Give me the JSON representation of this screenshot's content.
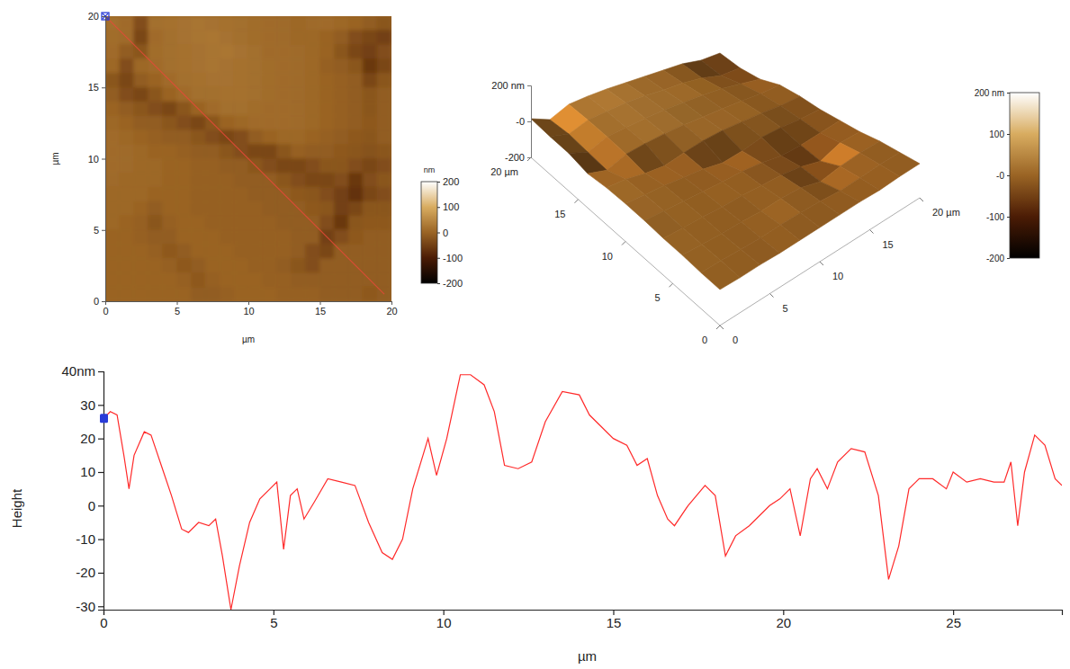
{
  "chart_data": [
    {
      "type": "heatmap",
      "x": [
        0.5,
        1.5,
        2.5,
        3.5,
        4.5,
        5.5,
        6.5,
        7.5,
        8.5,
        9.5,
        10.5,
        11.5,
        12.5,
        13.5,
        14.5,
        15.5,
        16.5,
        17.5,
        18.5,
        19.5
      ],
      "y": [
        19.5,
        18.5,
        17.5,
        16.5,
        15.5,
        14.5,
        13.5,
        12.5,
        11.5,
        10.5,
        9.5,
        8.5,
        7.5,
        6.5,
        5.5,
        4.5,
        3.5,
        2.5,
        1.5,
        0.5
      ],
      "z": [
        [
          15,
          10,
          -30,
          15,
          18,
          20,
          22,
          20,
          18,
          15,
          12,
          10,
          8,
          5,
          8,
          10,
          5,
          0,
          -10,
          -20
        ],
        [
          12,
          8,
          -40,
          10,
          15,
          20,
          22,
          25,
          20,
          15,
          12,
          10,
          8,
          5,
          5,
          0,
          -10,
          -30,
          -40,
          -50
        ],
        [
          10,
          -10,
          -20,
          12,
          15,
          18,
          20,
          22,
          25,
          20,
          15,
          10,
          10,
          8,
          5,
          0,
          -20,
          -40,
          -50,
          -30
        ],
        [
          5,
          -30,
          5,
          10,
          15,
          18,
          20,
          22,
          20,
          18,
          15,
          12,
          10,
          8,
          5,
          -5,
          -10,
          -20,
          -60,
          -40
        ],
        [
          -20,
          -40,
          -10,
          0,
          10,
          15,
          18,
          20,
          20,
          18,
          15,
          12,
          10,
          8,
          5,
          0,
          -5,
          -10,
          -40,
          -20
        ],
        [
          -10,
          -30,
          -40,
          -20,
          0,
          10,
          15,
          15,
          18,
          18,
          15,
          12,
          10,
          8,
          5,
          0,
          -5,
          -10,
          -20,
          -10
        ],
        [
          0,
          -10,
          -20,
          -30,
          -40,
          -20,
          0,
          10,
          15,
          15,
          12,
          10,
          10,
          8,
          5,
          0,
          -5,
          -10,
          -20,
          -10
        ],
        [
          5,
          0,
          -10,
          -10,
          -20,
          -30,
          -40,
          -20,
          0,
          5,
          10,
          10,
          10,
          8,
          5,
          0,
          -5,
          -10,
          -15,
          -10
        ],
        [
          10,
          5,
          0,
          -5,
          -10,
          -10,
          -20,
          -30,
          -40,
          -30,
          -10,
          0,
          5,
          5,
          0,
          -5,
          -10,
          -15,
          -20,
          -10
        ],
        [
          10,
          8,
          5,
          0,
          0,
          -5,
          -10,
          -10,
          -20,
          -30,
          -40,
          -40,
          -20,
          -5,
          -10,
          -10,
          -15,
          -20,
          -25,
          -20
        ],
        [
          10,
          8,
          5,
          5,
          0,
          0,
          -5,
          -5,
          -10,
          -10,
          -20,
          -30,
          -40,
          -40,
          -30,
          -20,
          -20,
          -30,
          -40,
          -30
        ],
        [
          8,
          5,
          5,
          5,
          0,
          0,
          -5,
          -5,
          -5,
          -10,
          -10,
          -10,
          -20,
          -30,
          -40,
          -40,
          -30,
          -60,
          -30,
          -20
        ],
        [
          5,
          5,
          5,
          0,
          0,
          0,
          -5,
          -5,
          -5,
          -5,
          -10,
          -10,
          -10,
          -15,
          -20,
          -30,
          -50,
          -70,
          -40,
          -30
        ],
        [
          5,
          5,
          0,
          -10,
          0,
          0,
          -5,
          -5,
          -5,
          -5,
          -5,
          -10,
          -10,
          -10,
          -15,
          -20,
          -50,
          -40,
          -20,
          -20
        ],
        [
          5,
          0,
          -5,
          -20,
          -5,
          0,
          0,
          -5,
          -5,
          -5,
          -5,
          -5,
          -10,
          -10,
          -10,
          -30,
          -60,
          -20,
          -15,
          -15
        ],
        [
          0,
          0,
          -5,
          -10,
          -10,
          0,
          0,
          0,
          -5,
          -5,
          -5,
          -5,
          -5,
          -10,
          -10,
          -50,
          -30,
          -15,
          -10,
          -10
        ],
        [
          0,
          0,
          0,
          -5,
          -15,
          -10,
          0,
          0,
          0,
          -5,
          -5,
          -5,
          -5,
          -10,
          -30,
          -40,
          -10,
          -10,
          -10,
          -10
        ],
        [
          0,
          0,
          0,
          0,
          -5,
          -15,
          -10,
          0,
          0,
          0,
          -5,
          -5,
          -10,
          -20,
          -30,
          -10,
          -10,
          -10,
          -10,
          -10
        ],
        [
          0,
          0,
          0,
          0,
          0,
          -5,
          -15,
          -5,
          0,
          0,
          0,
          -5,
          -5,
          -10,
          -10,
          -10,
          -10,
          -10,
          -10,
          -10
        ],
        [
          0,
          0,
          0,
          0,
          0,
          0,
          -10,
          -10,
          -5,
          0,
          0,
          0,
          -5,
          -5,
          -5,
          -10,
          -10,
          -10,
          -15,
          -10
        ]
      ],
      "xlim": [
        0,
        20
      ],
      "ylim": [
        0,
        20
      ],
      "xticks": [
        0,
        5,
        10,
        15,
        20
      ],
      "yticks": [
        0,
        5,
        10,
        15,
        20
      ],
      "xlabel": "µm",
      "ylabel": "µm",
      "colorbar_title": "nm",
      "colorbar_range": [
        -200,
        200
      ],
      "colorbar_ticks": [
        -200,
        -100,
        0,
        100,
        200
      ],
      "profile_line": {
        "x": [
          0,
          19.5
        ],
        "y": [
          20,
          0.5
        ],
        "color": "#e8483a"
      },
      "cursor": {
        "x": 0,
        "y": 20,
        "color": "#2a3cd8"
      }
    },
    {
      "type": "surface",
      "x": [
        0,
        2,
        4,
        6,
        8,
        10,
        12,
        14,
        16,
        18,
        20
      ],
      "y": [
        0,
        2,
        4,
        6,
        8,
        10,
        12,
        14,
        16,
        18,
        20
      ],
      "z": [
        [
          0,
          -5,
          -5,
          -10,
          -10,
          -10,
          -10,
          -10,
          -15,
          -10,
          -10
        ],
        [
          0,
          0,
          -5,
          -10,
          -5,
          -5,
          -10,
          -20,
          -15,
          -10,
          -10
        ],
        [
          5,
          0,
          -5,
          -5,
          -10,
          -5,
          -10,
          -40,
          -20,
          -10,
          -10
        ],
        [
          5,
          0,
          0,
          -5,
          -5,
          -10,
          -15,
          -30,
          -60,
          -20,
          -20
        ],
        [
          10,
          5,
          0,
          -5,
          -10,
          -10,
          -20,
          -40,
          -40,
          -30,
          -20
        ],
        [
          10,
          5,
          0,
          -10,
          -20,
          -40,
          -30,
          -10,
          -10,
          -20,
          -20
        ],
        [
          5,
          0,
          -20,
          -30,
          -10,
          5,
          10,
          5,
          0,
          -10,
          -10
        ],
        [
          -10,
          -40,
          0,
          10,
          15,
          15,
          10,
          5,
          0,
          -10,
          -10
        ],
        [
          10,
          -30,
          10,
          15,
          20,
          20,
          15,
          8,
          0,
          -20,
          -40
        ],
        [
          10,
          -20,
          15,
          20,
          25,
          20,
          10,
          5,
          -10,
          -40,
          -40
        ],
        [
          15,
          -30,
          15,
          20,
          20,
          15,
          10,
          5,
          0,
          -20,
          -20
        ]
      ],
      "xlim": [
        0,
        20
      ],
      "ylim": [
        0,
        20
      ],
      "zlim": [
        -200,
        200
      ],
      "xticks": [
        0,
        5,
        10,
        15,
        {
          "value": 20,
          "label": "20 µm"
        }
      ],
      "yticks": [
        0,
        5,
        10,
        15,
        {
          "value": 20,
          "label": "20 µm"
        }
      ],
      "zticks": [
        -200,
        {
          "value": 0,
          "label": "-0"
        },
        {
          "value": 200,
          "label": "200 nm"
        }
      ],
      "colorbar_range": [
        -200,
        200
      ],
      "colorbar_ticks": [
        -200,
        -100,
        {
          "value": 0,
          "label": "-0"
        },
        100,
        {
          "value": 200,
          "label": "200 nm"
        }
      ]
    },
    {
      "type": "line",
      "x": [
        0,
        0.2,
        0.4,
        0.6,
        0.75,
        0.9,
        1.2,
        1.4,
        1.7,
        2.0,
        2.3,
        2.5,
        2.8,
        3.1,
        3.3,
        3.5,
        3.75,
        4.0,
        4.3,
        4.6,
        4.9,
        5.1,
        5.3,
        5.5,
        5.7,
        5.9,
        6.2,
        6.6,
        7.0,
        7.4,
        7.8,
        8.2,
        8.5,
        8.8,
        9.1,
        9.4,
        9.55,
        9.8,
        10.1,
        10.5,
        10.8,
        11.2,
        11.5,
        11.8,
        12.2,
        12.6,
        13.0,
        13.5,
        14.0,
        14.3,
        14.6,
        15.0,
        15.4,
        15.7,
        16.0,
        16.3,
        16.6,
        16.8,
        17.2,
        17.7,
        18.0,
        18.2,
        18.3,
        18.6,
        19.0,
        19.6,
        19.9,
        20.2,
        20.5,
        20.8,
        21.0,
        21.3,
        21.6,
        22.0,
        22.4,
        22.8,
        23.1,
        23.4,
        23.7,
        24.0,
        24.4,
        24.8,
        25.0,
        25.4,
        25.8,
        26.2,
        26.5,
        26.7,
        26.9,
        27.1,
        27.4,
        27.7,
        28.0,
        28.2
      ],
      "values": [
        26,
        28,
        27,
        15,
        5,
        15,
        22,
        21,
        12,
        3,
        -7,
        -8,
        -5,
        -6,
        -4,
        -15,
        -31,
        -18,
        -5,
        2,
        5,
        7,
        -13,
        3,
        5,
        -4,
        1,
        8,
        7,
        6,
        -5,
        -14,
        -16,
        -10,
        5,
        15,
        20,
        9,
        20,
        39,
        39,
        36,
        28,
        12,
        11,
        13,
        25,
        34,
        33,
        27,
        24,
        20,
        18,
        12,
        14,
        3,
        -4,
        -6,
        0,
        6,
        3,
        -9,
        -15,
        -9,
        -6,
        0,
        2,
        5,
        -9,
        8,
        11,
        5,
        13,
        17,
        16,
        3,
        -22,
        -12,
        5,
        8,
        8,
        5,
        10,
        7,
        8,
        7,
        7,
        13,
        -6,
        10,
        21,
        18,
        8,
        6
      ],
      "color": "#ff2a2a",
      "xlim": [
        0,
        28.2
      ],
      "ylim": [
        -31,
        40
      ],
      "xticks": [
        0,
        5,
        10,
        15,
        20,
        25
      ],
      "yticks": [
        -30,
        -20,
        -10,
        0,
        10,
        20,
        30,
        {
          "value": 40,
          "label": "40nm"
        }
      ],
      "xlabel": "µm",
      "ylabel": "Height",
      "cursor": {
        "x": 0,
        "y": 26,
        "color": "#2a3cd8"
      }
    }
  ]
}
